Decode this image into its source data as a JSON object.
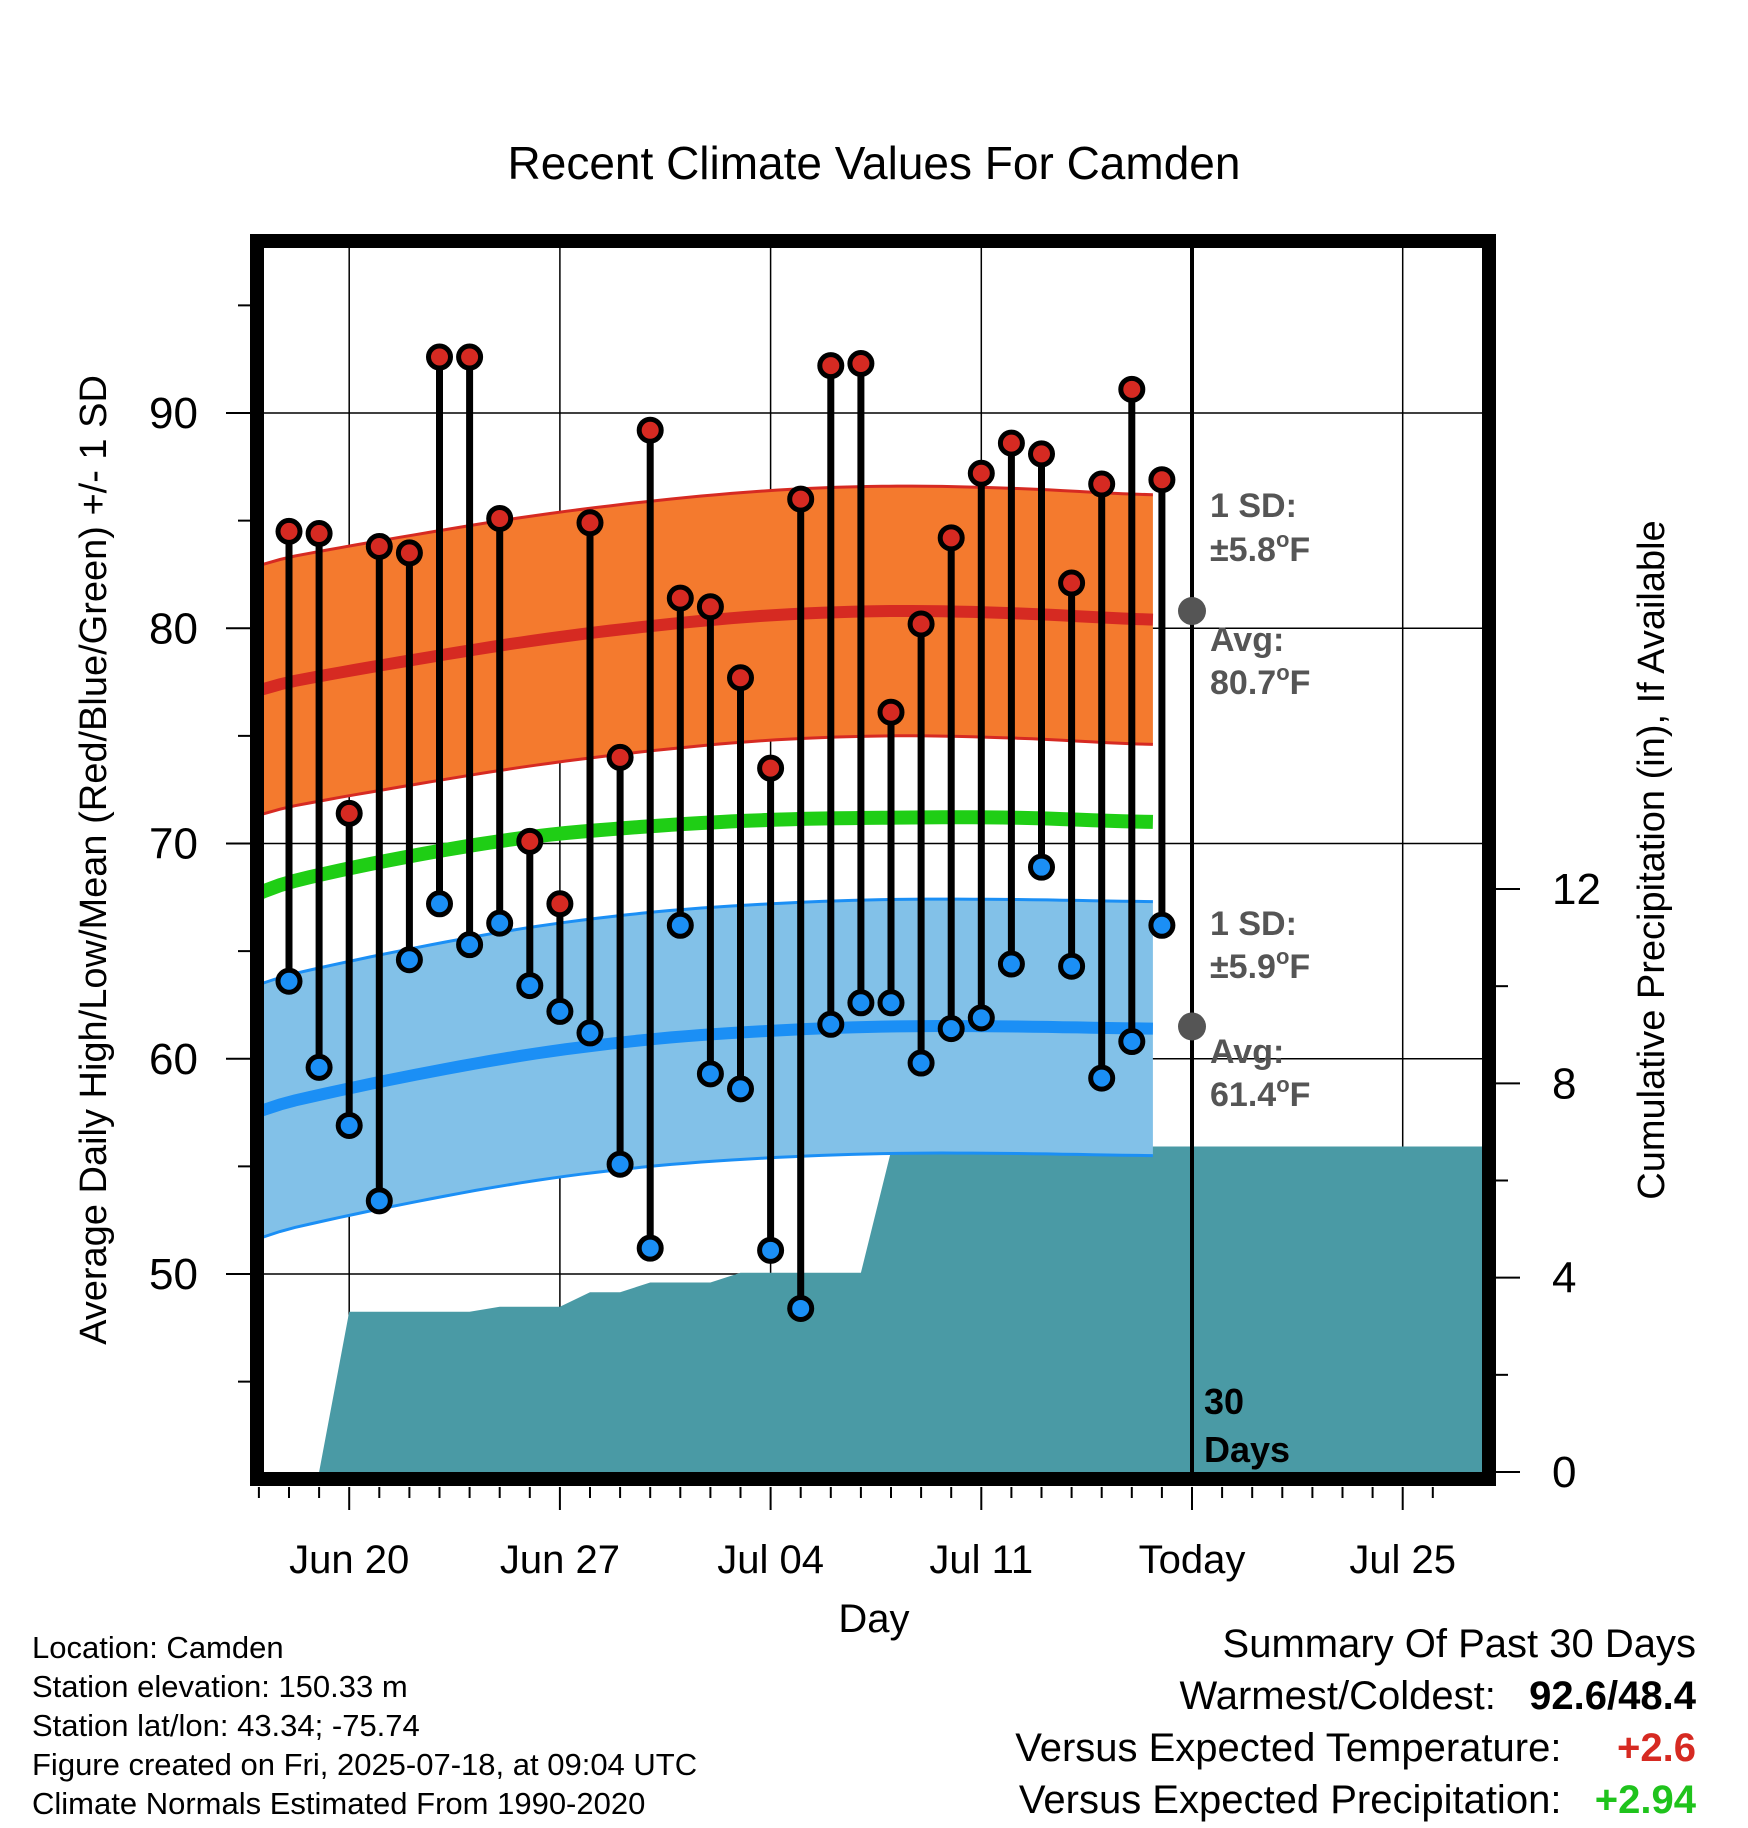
{
  "chart_data": {
    "type": "line",
    "title": "Recent Climate Values For Camden",
    "xlabel": "Day",
    "ylabel": "Average Daily High/Low/Mean (Red/Blue/Green) +/- 1 SD",
    "y2label": "Cumulative Precipitation (in), If Available",
    "ylim": [
      40,
      98
    ],
    "y2lim": [
      0,
      24
    ],
    "yticks": [
      "50",
      "60",
      "70",
      "80",
      "90"
    ],
    "y2ticks": [
      "0",
      "4",
      "8",
      "12"
    ],
    "xtick_labels": [
      "Jun 20",
      "Jun 27",
      "Jul 04",
      "Jul 11",
      "Today",
      "Jul 25"
    ],
    "grid": true,
    "days": [
      "Jun 18",
      "Jun 19",
      "Jun 20",
      "Jun 21",
      "Jun 22",
      "Jun 23",
      "Jun 24",
      "Jun 25",
      "Jun 26",
      "Jun 27",
      "Jun 28",
      "Jun 29",
      "Jun 30",
      "Jul 01",
      "Jul 02",
      "Jul 03",
      "Jul 04",
      "Jul 05",
      "Jul 06",
      "Jul 07",
      "Jul 08",
      "Jul 09",
      "Jul 10",
      "Jul 11",
      "Jul 12",
      "Jul 13",
      "Jul 14",
      "Jul 15",
      "Jul 16",
      "Jul 17"
    ],
    "highs": [
      84.5,
      84.4,
      71.4,
      83.8,
      83.5,
      92.6,
      92.6,
      85.1,
      70.1,
      67.2,
      84.9,
      74.0,
      89.2,
      81.4,
      81.0,
      77.7,
      73.5,
      86.0,
      92.2,
      92.3,
      76.1,
      80.2,
      84.2,
      87.2,
      88.6,
      88.1,
      82.1,
      86.7,
      91.1,
      86.9
    ],
    "lows": [
      63.6,
      59.6,
      56.9,
      53.4,
      64.6,
      67.2,
      65.3,
      66.3,
      63.4,
      62.2,
      61.2,
      55.1,
      51.2,
      66.2,
      59.3,
      58.6,
      51.1,
      48.4,
      61.6,
      62.6,
      62.6,
      59.8,
      61.4,
      61.9,
      64.4,
      68.9,
      64.3,
      59.1,
      60.8,
      66.2
    ],
    "normal_high": {
      "name": "Avg:",
      "value": "80.7°F",
      "sd_label": "1 SD:",
      "sd": "±5.8°F",
      "curve": [
        76.3,
        77.5,
        78.5,
        79.4,
        80.1,
        80.6,
        80.8,
        80.7,
        80.4
      ],
      "sd_value": 5.8
    },
    "normal_low": {
      "name": "Avg:",
      "value": "61.4°F",
      "sd_label": "1 SD:",
      "sd": "±5.9°F",
      "curve": [
        56.6,
        58.0,
        59.2,
        60.2,
        60.9,
        61.3,
        61.5,
        61.5,
        61.4
      ],
      "sd_value": 5.9
    },
    "normal_mean": {
      "curve": [
        66.6,
        68.2,
        69.4,
        70.3,
        70.8,
        71.1,
        71.2,
        71.2,
        71.0
      ]
    },
    "curve_days": [
      -3.3,
      0,
      4,
      8,
      12,
      16,
      20,
      24,
      28.8
    ],
    "precip_cumulative": [
      [
        0,
        0
      ],
      [
        1,
        0
      ],
      [
        2,
        3.3
      ],
      [
        3,
        3.3
      ],
      [
        4,
        3.3
      ],
      [
        5,
        3.3
      ],
      [
        6,
        3.3
      ],
      [
        7,
        3.4
      ],
      [
        8,
        3.4
      ],
      [
        9,
        3.4
      ],
      [
        10,
        3.7
      ],
      [
        11,
        3.7
      ],
      [
        12,
        3.9
      ],
      [
        13,
        3.9
      ],
      [
        14,
        3.9
      ],
      [
        15,
        4.1
      ],
      [
        16,
        4.1
      ],
      [
        17,
        4.1
      ],
      [
        18,
        4.1
      ],
      [
        19,
        4.1
      ],
      [
        20,
        6.6
      ],
      [
        21,
        6.6
      ],
      [
        22,
        6.6
      ],
      [
        23,
        6.7
      ],
      [
        24,
        6.7
      ],
      [
        25,
        6.7
      ],
      [
        26,
        6.7
      ],
      [
        27,
        6.7
      ],
      [
        28,
        6.7
      ],
      [
        29,
        6.7
      ]
    ],
    "today_marker": "30\nDays"
  },
  "marker_label": {
    "line1": "30",
    "line2": "Days"
  },
  "footer": {
    "location": "Location: Camden",
    "elevation": "Station elevation: 150.33 m",
    "latlon": "Station lat/lon: 43.34; -75.74",
    "created": "Figure created on Fri, 2025-07-18, at 09:04 UTC",
    "normals": "Climate Normals Estimated From 1990-2020"
  },
  "summary": {
    "title": "Summary Of Past 30 Days",
    "warm_cold_label": "Warmest/Coldest:",
    "warm_cold_value": "92.6/48.4",
    "temp_label": "Versus Expected Temperature:",
    "temp_value": "+2.6",
    "precip_label": "Versus Expected Precipitation:",
    "precip_value": "+2.94"
  },
  "colors": {
    "high_band": "#f47a2e",
    "high_line": "#d62a22",
    "low_band": "#82c1e8",
    "low_line": "#1b8ff5",
    "mean_line": "#1fce15",
    "precip": "#4a9aa5",
    "high_dot": "#d62a22",
    "low_dot": "#1b8ff5",
    "annot": "#555555",
    "temp_value": "#d62a22",
    "precip_value": "#1fc31c"
  }
}
